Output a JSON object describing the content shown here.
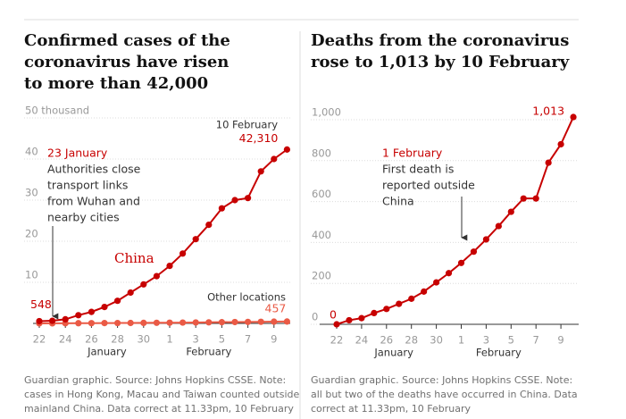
{
  "chart_data": [
    {
      "type": "line",
      "title": [
        "Confirmed cases of the",
        "coronavirus have risen",
        "to more than 42,000"
      ],
      "categories": [
        "22",
        null,
        "24",
        null,
        "26",
        null,
        "28",
        null,
        "30",
        null,
        "1",
        null,
        "3",
        null,
        "5",
        null,
        "7",
        null,
        "9",
        null
      ],
      "months": [
        "January",
        "February"
      ],
      "series": [
        {
          "name": "China",
          "color": "#c70000",
          "values": [
            0.548,
            0.64,
            1.0,
            2.0,
            2.8,
            4.0,
            5.5,
            7.5,
            9.5,
            11.5,
            14.0,
            17.0,
            20.5,
            24.0,
            28.0,
            30.0,
            30.5,
            37.0,
            40.0,
            42.31
          ],
          "value_labels": [
            "548",
            null,
            null,
            null,
            null,
            null,
            null,
            null,
            null,
            null,
            null,
            null,
            null,
            null,
            null,
            null,
            null,
            null,
            null,
            "42,310"
          ]
        },
        {
          "name": "Other locations",
          "color": "#ea5a45",
          "values": [
            0.01,
            0.02,
            0.03,
            0.05,
            0.06,
            0.08,
            0.1,
            0.11,
            0.13,
            0.15,
            0.17,
            0.2,
            0.23,
            0.26,
            0.3,
            0.33,
            0.36,
            0.39,
            0.43,
            0.457
          ],
          "value_labels": [
            null,
            null,
            null,
            null,
            null,
            null,
            null,
            null,
            null,
            null,
            null,
            null,
            null,
            null,
            null,
            null,
            null,
            null,
            null,
            "457"
          ]
        }
      ],
      "annotations": [
        {
          "title": "23 January",
          "lines": [
            "Authorities close",
            "transport links",
            "from Wuhan and",
            "nearby cities"
          ]
        },
        {
          "title": "10 February"
        }
      ],
      "ylim": [
        0,
        50
      ],
      "yticks": [
        10,
        20,
        30,
        40,
        {
          "value": 50,
          "label": "50 thousand"
        }
      ],
      "grid": true,
      "note": [
        "Guardian graphic. Source: Johns Hopkins CSSE. Note:",
        "cases in Hong Kong, Macau and Taiwan counted outside",
        "mainland China. Data correct at 11.33pm, 10 February"
      ]
    },
    {
      "type": "line",
      "title": [
        "Deaths from the coronavirus",
        "rose to 1,013 by 10 February"
      ],
      "categories": [
        "22",
        null,
        "24",
        null,
        "26",
        null,
        "28",
        null,
        "30",
        null,
        "1",
        null,
        "3",
        null,
        "5",
        null,
        "7",
        null,
        "9",
        null
      ],
      "months": [
        "January",
        "February"
      ],
      "series": [
        {
          "name": "",
          "color": "#c70000",
          "values": [
            0,
            20,
            30,
            55,
            75,
            100,
            125,
            160,
            205,
            250,
            300,
            355,
            415,
            480,
            550,
            615,
            615,
            790,
            880,
            1013
          ],
          "value_labels": [
            "0",
            null,
            null,
            null,
            null,
            null,
            null,
            null,
            null,
            null,
            null,
            null,
            null,
            null,
            null,
            null,
            null,
            null,
            null,
            "1,013"
          ]
        }
      ],
      "annotations": [
        {
          "title": "1 February",
          "lines": [
            "First death is",
            "reported outside",
            "China"
          ]
        }
      ],
      "ylim": [
        0,
        1000
      ],
      "yticks": [
        0,
        200,
        400,
        600,
        800,
        {
          "value": 1000,
          "label": "1,000"
        }
      ],
      "grid": true,
      "note": [
        "Guardian graphic. Source: Johns Hopkins CSSE. Note:",
        "all but two of the deaths have occurred in China. Data",
        "correct at 11.33pm, 10 February"
      ]
    }
  ]
}
